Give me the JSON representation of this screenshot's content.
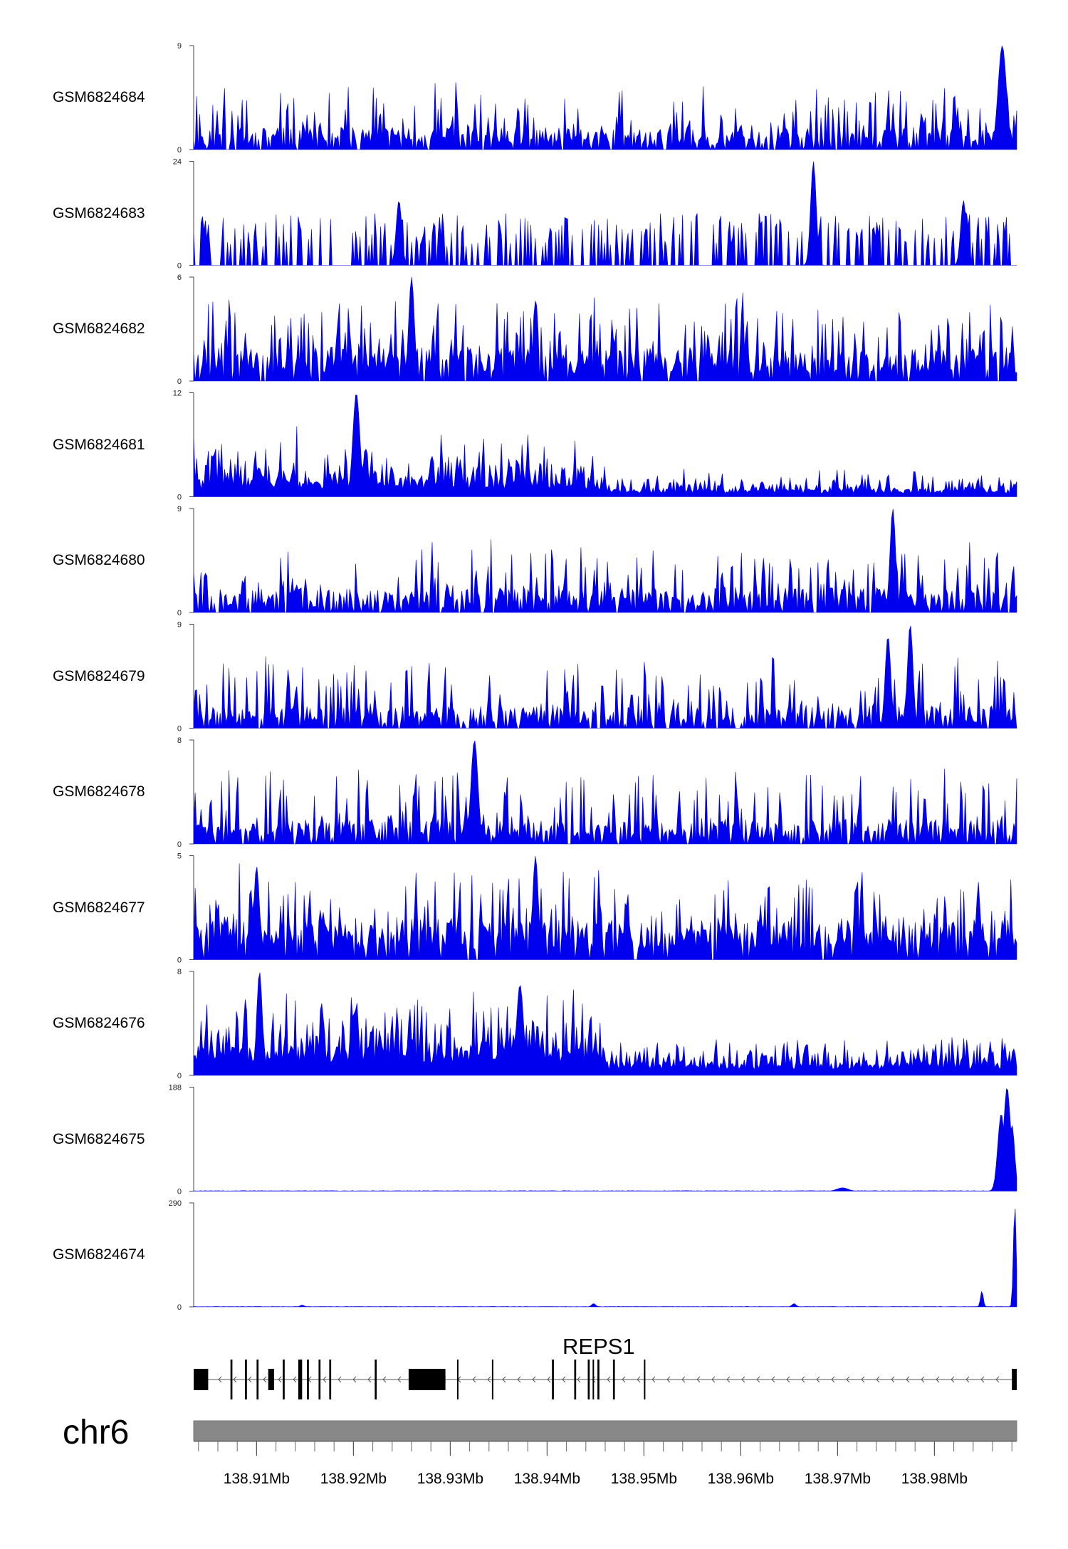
{
  "chart_data": {
    "type": "area",
    "title": "",
    "chromosome": "chr6",
    "x_unit": "Mb",
    "xlim": [
      138.9035,
      138.9885
    ],
    "x_ticks": [
      138.91,
      138.92,
      138.93,
      138.94,
      138.95,
      138.96,
      138.97,
      138.98
    ],
    "x_tick_labels": [
      "138.91Mb",
      "138.92Mb",
      "138.93Mb",
      "138.94Mb",
      "138.95Mb",
      "138.96Mb",
      "138.97Mb",
      "138.98Mb"
    ],
    "fill_color": "#0000ee",
    "series": [
      {
        "name": "GSM6824684",
        "ymax": 9,
        "ymax_label": "9",
        "ymin_label": "0",
        "profile": "spiky",
        "baseline": 0.18,
        "spike": 0.45,
        "seed": 11,
        "peaks": [
          [
            138.987,
            9,
            0.0006
          ]
        ]
      },
      {
        "name": "GSM6824683",
        "ymax": 24,
        "ymax_label": "24",
        "ymin_label": "0",
        "profile": "sparse",
        "baseline": 0.08,
        "spike": 0.32,
        "seed": 23,
        "peaks": [
          [
            138.9675,
            24,
            0.0004
          ],
          [
            138.9247,
            15,
            0.0004
          ],
          [
            138.983,
            15,
            0.0004
          ]
        ]
      },
      {
        "name": "GSM6824682",
        "ymax": 6,
        "ymax_label": "6",
        "ymin_label": "0",
        "profile": "dense",
        "baseline": 0.25,
        "spike": 0.55,
        "seed": 37,
        "peaks": [
          [
            138.926,
            6,
            0.0004
          ]
        ]
      },
      {
        "name": "GSM6824681",
        "ymax": 12,
        "ymax_label": "12",
        "ymin_label": "0",
        "profile": "dense_decay",
        "baseline": 0.12,
        "spike": 0.3,
        "seed": 41,
        "peaks": [
          [
            138.9203,
            12,
            0.0005
          ]
        ]
      },
      {
        "name": "GSM6824680",
        "ymax": 9,
        "ymax_label": "9",
        "ymin_label": "0",
        "profile": "spiky",
        "baseline": 0.2,
        "spike": 0.5,
        "seed": 53,
        "peaks": [
          [
            138.9757,
            9,
            0.0004
          ]
        ]
      },
      {
        "name": "GSM6824679",
        "ymax": 9,
        "ymax_label": "9",
        "ymin_label": "0",
        "profile": "spiky",
        "baseline": 0.18,
        "spike": 0.5,
        "seed": 61,
        "peaks": [
          [
            138.9775,
            9,
            0.0004
          ],
          [
            138.9752,
            8,
            0.0004
          ]
        ]
      },
      {
        "name": "GSM6824678",
        "ymax": 8,
        "ymax_label": "8",
        "ymin_label": "0",
        "profile": "spiky",
        "baseline": 0.2,
        "spike": 0.55,
        "seed": 73,
        "peaks": [
          [
            138.9325,
            8,
            0.0005
          ]
        ]
      },
      {
        "name": "GSM6824677",
        "ymax": 5,
        "ymax_label": "5",
        "ymin_label": "0",
        "profile": "dense",
        "baseline": 0.3,
        "spike": 0.55,
        "seed": 89,
        "peaks": [
          [
            138.9388,
            5,
            0.0004
          ],
          [
            138.91,
            4.5,
            0.0004
          ]
        ]
      },
      {
        "name": "GSM6824676",
        "ymax": 8,
        "ymax_label": "8",
        "ymin_label": "0",
        "profile": "dense_decay",
        "baseline": 0.2,
        "spike": 0.45,
        "seed": 97,
        "peaks": [
          [
            138.9103,
            8,
            0.0004
          ],
          [
            138.9372,
            7,
            0.0005
          ]
        ]
      },
      {
        "name": "GSM6824675",
        "ymax": 188,
        "ymax_label": "188",
        "ymin_label": "0",
        "profile": "flat",
        "baseline": 0.004,
        "spike": 0.01,
        "seed": 101,
        "peaks": [
          [
            138.9875,
            188,
            0.0005
          ],
          [
            138.9869,
            140,
            0.0005
          ],
          [
            138.988,
            120,
            0.0004
          ],
          [
            138.9705,
            6,
            0.0008
          ]
        ]
      },
      {
        "name": "GSM6824674",
        "ymax": 290,
        "ymax_label": "290",
        "ymin_label": "0",
        "profile": "flat",
        "baseline": 0.003,
        "spike": 0.008,
        "seed": 113,
        "peaks": [
          [
            138.9883,
            290,
            0.0002
          ],
          [
            138.9849,
            45,
            0.0002
          ],
          [
            138.9448,
            9,
            0.0003
          ],
          [
            138.9655,
            9,
            0.0003
          ],
          [
            138.9147,
            5,
            0.0003
          ]
        ]
      }
    ],
    "gene": {
      "name": "REPS1",
      "start": 138.9035,
      "end": 138.9885,
      "strand": "-",
      "exons": [
        [
          138.9035,
          138.905
        ],
        [
          138.9073,
          138.9075
        ],
        [
          138.9088,
          138.909
        ],
        [
          138.91,
          138.9102
        ],
        [
          138.9112,
          138.9118
        ],
        [
          138.9127,
          138.9129
        ],
        [
          138.9143,
          138.9147
        ],
        [
          138.9152,
          138.9154
        ],
        [
          138.9164,
          138.9166
        ],
        [
          138.9175,
          138.9177
        ],
        [
          138.9222,
          138.9224
        ],
        [
          138.9257,
          138.9295
        ],
        [
          138.9307,
          138.9308
        ],
        [
          138.9343,
          138.9344
        ],
        [
          138.9405,
          138.9407
        ],
        [
          138.9428,
          138.943
        ],
        [
          138.9442,
          138.9444
        ],
        [
          138.9447,
          138.9448
        ],
        [
          138.9452,
          138.9454
        ],
        [
          138.9468,
          138.947
        ],
        [
          138.95,
          138.9501
        ],
        [
          138.988,
          138.9885
        ]
      ]
    }
  }
}
